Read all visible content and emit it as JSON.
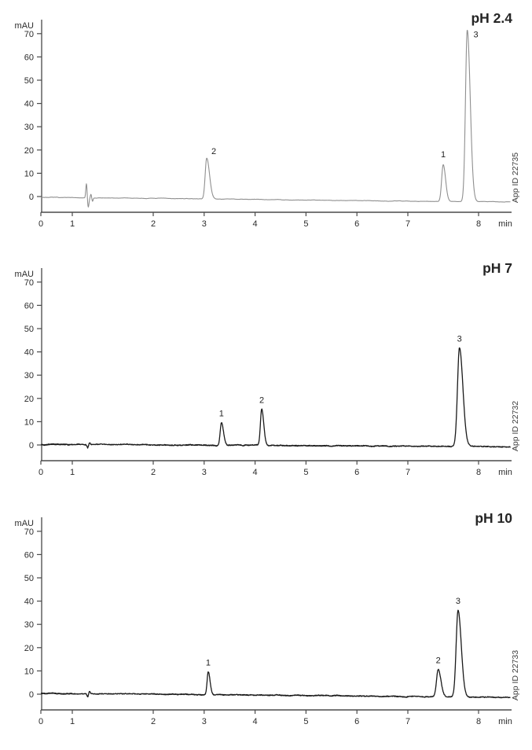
{
  "page": {
    "background_color": "#ffffff",
    "axis_color": "#4a4a4a",
    "description_labels": {
      "y_unit": "mAU",
      "x_unit": "min"
    }
  },
  "chart_data": [
    {
      "type": "line",
      "title": "pH 2.4",
      "right_label": "App ID 22735",
      "ylabel": "mAU",
      "xlabel": "min",
      "y_ticks": [
        0,
        10,
        20,
        30,
        40,
        50,
        60,
        70
      ],
      "x_ticks": [
        0,
        1,
        2,
        3,
        4,
        5,
        6,
        7,
        8
      ],
      "x_span": [
        0,
        8.45
      ],
      "ylim": [
        -6,
        76
      ],
      "grid": "off",
      "legend": "none",
      "trace_color": "#8f8f8f",
      "baseline_mau": {
        "start": -0.3,
        "end": -2.3
      },
      "noise_mau": 0.18,
      "injection_spikes": [
        {
          "t_min": 1.175,
          "amp_mau": 6.3,
          "sigma_min": 0.008
        },
        {
          "t_min": 1.197,
          "amp_mau": -4.0,
          "sigma_min": 0.009
        },
        {
          "t_min": 1.23,
          "amp_mau": 1.6,
          "sigma_min": 0.007
        },
        {
          "t_min": 1.25,
          "amp_mau": -1.4,
          "sigma_min": 0.007
        }
      ],
      "peaks": [
        {
          "label": "2",
          "rt_min": 3.05,
          "apex_mau": 16.5,
          "sigma_min": [
            0.03,
            0.055
          ]
        },
        {
          "label": "1",
          "rt_min": 7.5,
          "apex_mau": 13.8,
          "sigma_min": [
            0.022,
            0.034
          ]
        },
        {
          "label": "3",
          "rt_min": 7.84,
          "apex_mau": 71.5,
          "sigma_min": [
            0.025,
            0.042
          ]
        }
      ]
    },
    {
      "type": "line",
      "title": "pH 7",
      "right_label": "App ID 22732",
      "ylabel": "mAU",
      "xlabel": "min",
      "y_ticks": [
        0,
        10,
        20,
        30,
        40,
        50,
        60,
        70
      ],
      "x_ticks": [
        0,
        1,
        2,
        3,
        4,
        5,
        6,
        7,
        8
      ],
      "x_span": [
        0,
        8.45
      ],
      "ylim": [
        -6,
        76
      ],
      "grid": "off",
      "legend": "none",
      "trace_color": "#1a1a1a",
      "baseline_mau": {
        "start": 0.3,
        "end": -0.7
      },
      "noise_mau": 0.3,
      "injection_spikes": [
        {
          "t_min": 1.19,
          "amp_mau": -1.3,
          "sigma_min": 0.008
        },
        {
          "t_min": 1.215,
          "amp_mau": 0.8,
          "sigma_min": 0.008
        }
      ],
      "peaks": [
        {
          "label": "1",
          "rt_min": 3.34,
          "apex_mau": 9.6,
          "sigma_min": [
            0.025,
            0.04
          ]
        },
        {
          "label": "2",
          "rt_min": 4.13,
          "apex_mau": 15.3,
          "sigma_min": [
            0.025,
            0.04
          ]
        },
        {
          "label": "3",
          "rt_min": 7.73,
          "apex_mau": 41.8,
          "sigma_min": [
            0.028,
            0.048
          ]
        }
      ]
    },
    {
      "type": "line",
      "title": "pH 10",
      "right_label": "App ID 22733",
      "ylabel": "mAU",
      "xlabel": "min",
      "y_ticks": [
        0,
        10,
        20,
        30,
        40,
        50,
        60,
        70
      ],
      "x_ticks": [
        0,
        1,
        2,
        3,
        4,
        5,
        6,
        7,
        8
      ],
      "x_span": [
        0,
        8.45
      ],
      "ylim": [
        -6,
        76
      ],
      "grid": "off",
      "legend": "none",
      "trace_color": "#1a1a1a",
      "baseline_mau": {
        "start": 0.4,
        "end": -1.3
      },
      "noise_mau": 0.3,
      "injection_spikes": [
        {
          "t_min": 1.19,
          "amp_mau": -1.4,
          "sigma_min": 0.008
        },
        {
          "t_min": 1.213,
          "amp_mau": 0.9,
          "sigma_min": 0.008
        }
      ],
      "peaks": [
        {
          "label": "1",
          "rt_min": 3.08,
          "apex_mau": 9.6,
          "sigma_min": [
            0.022,
            0.036
          ]
        },
        {
          "label": "2",
          "rt_min": 7.43,
          "apex_mau": 10.6,
          "sigma_min": [
            0.024,
            0.038
          ]
        },
        {
          "label": "3",
          "rt_min": 7.71,
          "apex_mau": 36.2,
          "sigma_min": [
            0.027,
            0.045
          ]
        }
      ]
    }
  ]
}
